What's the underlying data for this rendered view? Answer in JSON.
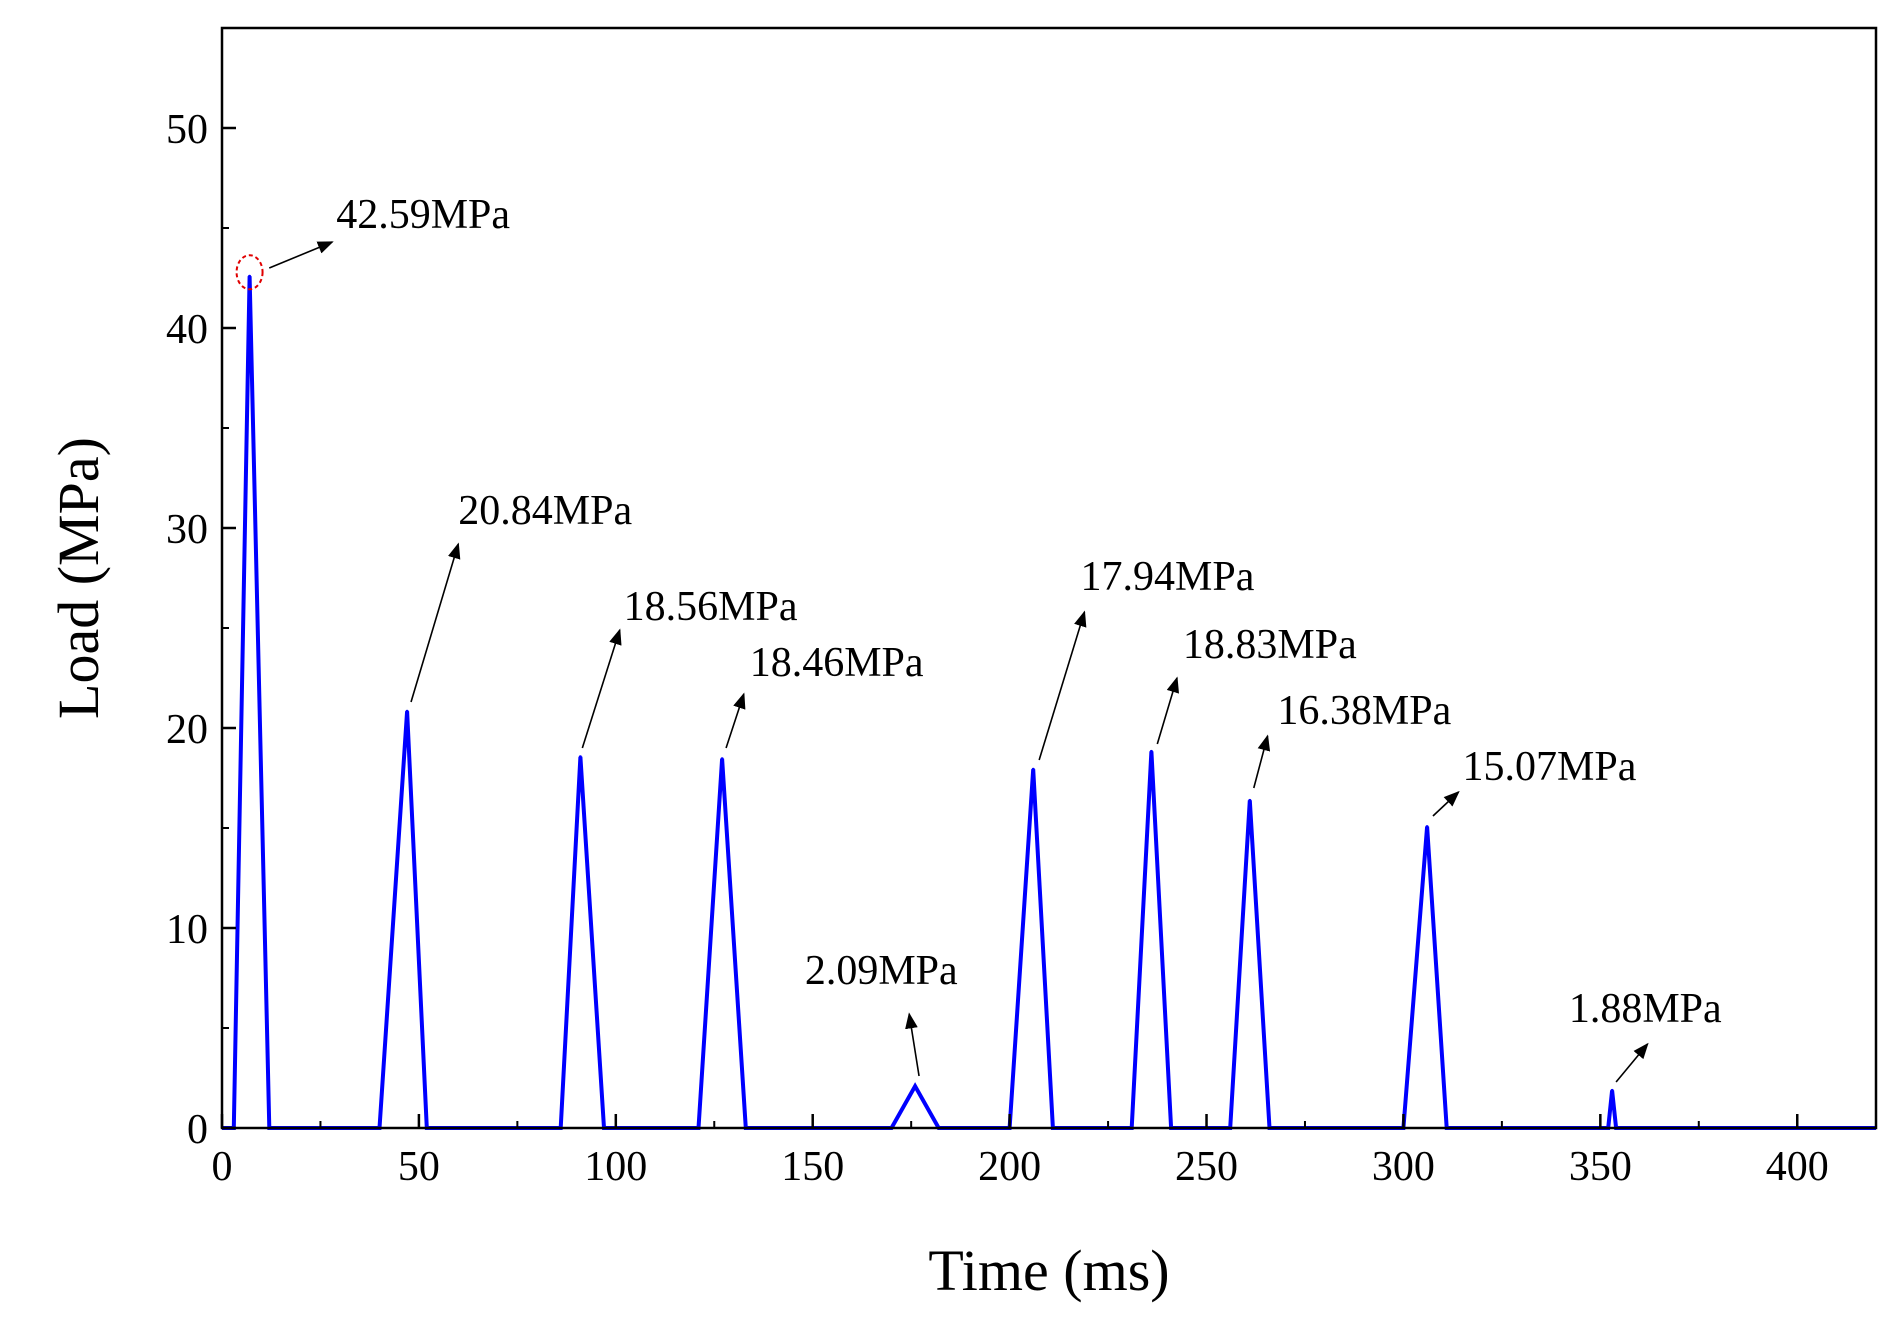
{
  "chart_data": {
    "type": "line",
    "title": "",
    "xlabel": "Time (ms)",
    "ylabel": "Load (MPa)",
    "xlim": [
      0,
      420
    ],
    "ylim": [
      0,
      55
    ],
    "xticks": [
      0,
      50,
      100,
      150,
      200,
      250,
      300,
      350,
      400
    ],
    "yticks": [
      0,
      10,
      20,
      30,
      40,
      50
    ],
    "grid": false,
    "series": [
      {
        "name": "Load",
        "color": "#0000ff",
        "peaks": [
          {
            "start": 3,
            "peak_time": 7,
            "end": 12,
            "value": 42.59
          },
          {
            "start": 40,
            "peak_time": 47,
            "end": 52,
            "value": 20.84
          },
          {
            "start": 86,
            "peak_time": 91,
            "end": 97,
            "value": 18.56
          },
          {
            "start": 121,
            "peak_time": 127,
            "end": 133,
            "value": 18.46
          },
          {
            "start": 170,
            "peak_time": 176,
            "end": 182,
            "value": 2.09
          },
          {
            "start": 200,
            "peak_time": 206,
            "end": 211,
            "value": 17.94
          },
          {
            "start": 231,
            "peak_time": 236,
            "end": 241,
            "value": 18.83
          },
          {
            "start": 256,
            "peak_time": 261,
            "end": 266,
            "value": 16.38
          },
          {
            "start": 300,
            "peak_time": 306,
            "end": 311,
            "value": 15.07
          },
          {
            "start": 352,
            "peak_time": 353,
            "end": 354,
            "value": 1.88
          }
        ]
      }
    ],
    "annotations": [
      {
        "text": "42.59MPa",
        "x": 29,
        "y": 45.0,
        "arrow_from": [
          12,
          43.0
        ],
        "arrow_to": [
          28,
          44.3
        ]
      },
      {
        "text": "20.84MPa",
        "x": 60,
        "y": 30.2,
        "arrow_from": [
          48,
          21.3
        ],
        "arrow_to": [
          60,
          29.2
        ]
      },
      {
        "text": "18.56MPa",
        "x": 102,
        "y": 25.4,
        "arrow_from": [
          91.5,
          19.0
        ],
        "arrow_to": [
          101,
          24.9
        ]
      },
      {
        "text": "18.46MPa",
        "x": 134,
        "y": 22.6,
        "arrow_from": [
          128,
          19.0
        ],
        "arrow_to": [
          132.5,
          21.7
        ]
      },
      {
        "text": "2.09MPa",
        "x": 148,
        "y": 7.2,
        "arrow_from": [
          177,
          2.6
        ],
        "arrow_to": [
          174.5,
          5.7
        ]
      },
      {
        "text": "17.94MPa",
        "x": 218,
        "y": 26.9,
        "arrow_from": [
          207.5,
          18.4
        ],
        "arrow_to": [
          219,
          25.8
        ]
      },
      {
        "text": "18.83MPa",
        "x": 244,
        "y": 23.5,
        "arrow_from": [
          237.5,
          19.2
        ],
        "arrow_to": [
          242.5,
          22.5
        ]
      },
      {
        "text": "16.38MPa",
        "x": 268,
        "y": 20.2,
        "arrow_from": [
          262,
          17.0
        ],
        "arrow_to": [
          265.5,
          19.6
        ]
      },
      {
        "text": "15.07MPa",
        "x": 315,
        "y": 17.4,
        "arrow_from": [
          307.5,
          15.6
        ],
        "arrow_to": [
          314,
          16.8
        ]
      },
      {
        "text": "1.88MPa",
        "x": 342,
        "y": 5.3,
        "arrow_from": [
          354,
          2.3
        ],
        "arrow_to": [
          362,
          4.2
        ]
      }
    ],
    "highlight": {
      "x": 7,
      "y": 42.59,
      "color": "#e00000",
      "style": "dashed-circle"
    }
  }
}
